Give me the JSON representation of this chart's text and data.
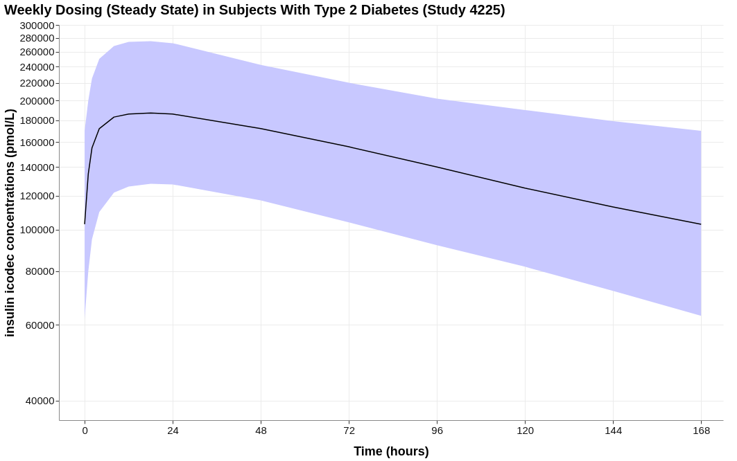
{
  "chart_data": {
    "type": "line",
    "title": "Weekly Dosing (Steady State) in Subjects With Type 2 Diabetes (Study 4225)",
    "xlabel": "Time (hours)",
    "ylabel": "insulin icodec concentrations (pmol/L)",
    "x": [
      0,
      1,
      2,
      4,
      8,
      12,
      18,
      24,
      48,
      72,
      96,
      120,
      144,
      168
    ],
    "series": [
      {
        "color": "#000000",
        "values": [
          103000,
          135000,
          155000,
          172000,
          183000,
          186000,
          187000,
          186000,
          172000,
          156000,
          140000,
          125000,
          113000,
          103000
        ],
        "lower": [
          62000,
          80000,
          95000,
          110000,
          122000,
          126000,
          128000,
          127500,
          117000,
          104000,
          92000,
          82000,
          72000,
          63000
        ],
        "upper": [
          170000,
          200000,
          225000,
          250000,
          268000,
          274000,
          275000,
          272000,
          242000,
          220000,
          202000,
          190000,
          179000,
          170000
        ]
      }
    ],
    "xlim": [
      -7,
      174
    ],
    "xticks": [
      0,
      24,
      48,
      72,
      96,
      120,
      144,
      168
    ],
    "ylim": [
      36000,
      300000
    ],
    "yticks": [
      40000,
      60000,
      80000,
      100000,
      120000,
      140000,
      160000,
      180000,
      200000,
      220000,
      240000,
      260000,
      280000,
      300000
    ],
    "log": true,
    "grid": true,
    "line_style": "solid",
    "marker": "none"
  }
}
